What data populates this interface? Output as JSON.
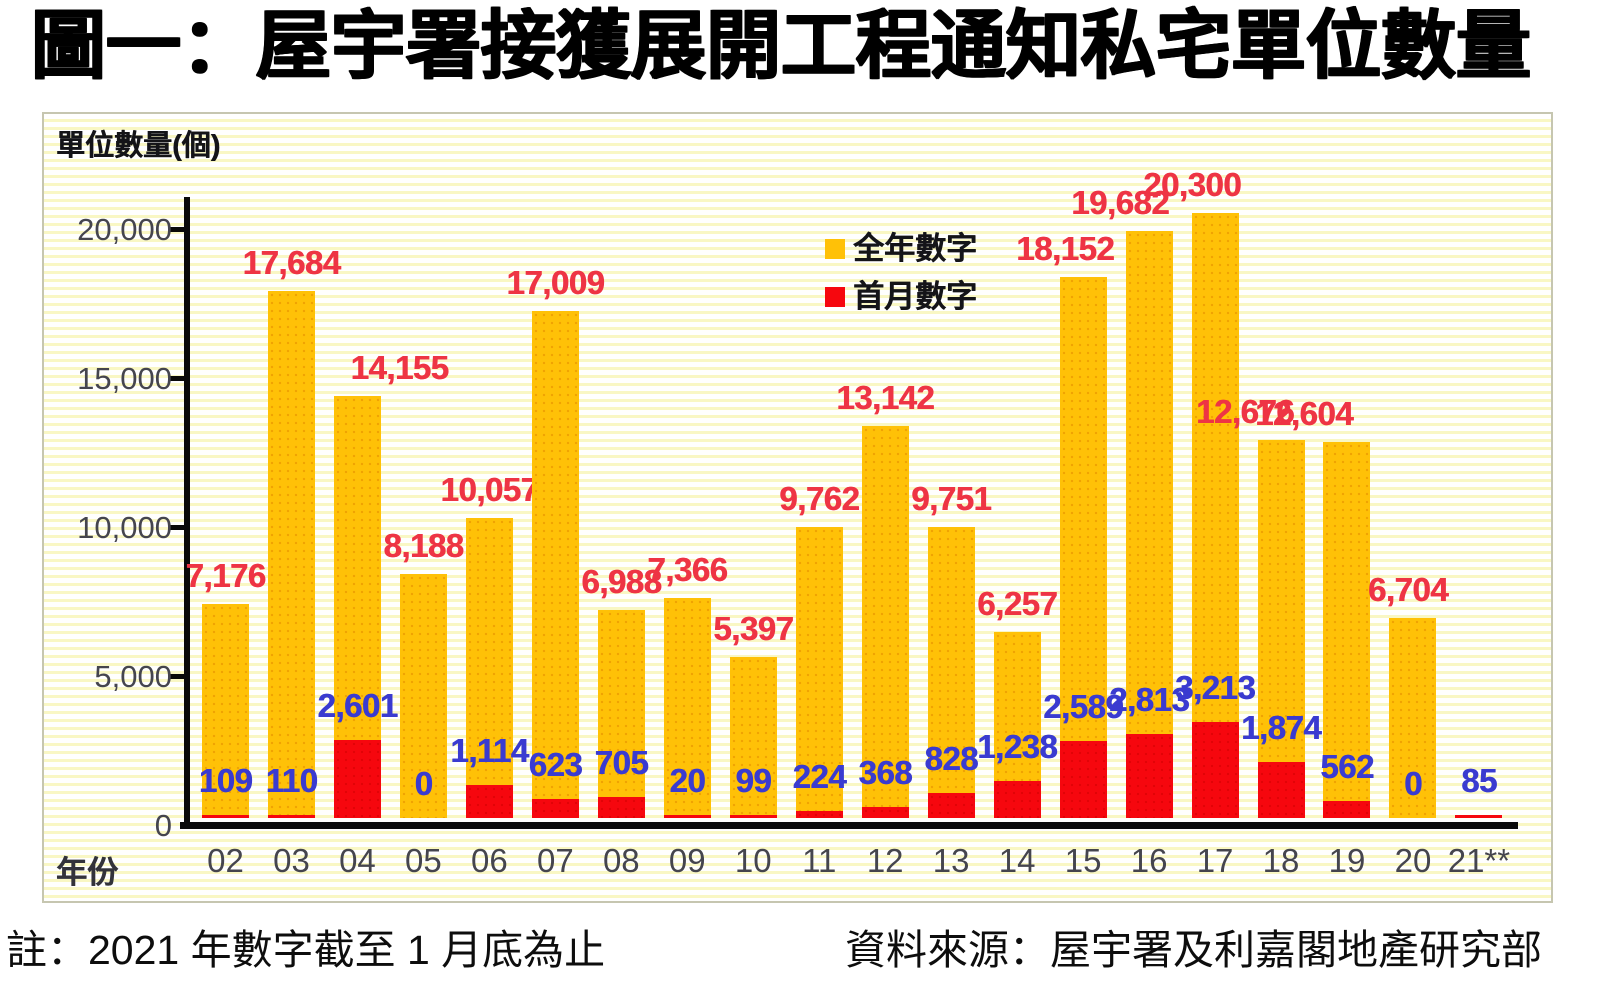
{
  "title": "圖一：屋宇署接獲展開工程通知私宅單位數量",
  "chart": {
    "unit_label": "單位數量(個)",
    "x_axis_label": "年份"
  },
  "chart_data": {
    "type": "bar",
    "title": "圖一：屋宇署接獲展開工程通知私宅單位數量",
    "categories": [
      "02",
      "03",
      "04",
      "05",
      "06",
      "07",
      "08",
      "09",
      "10",
      "11",
      "12",
      "13",
      "14",
      "15",
      "16",
      "17",
      "18",
      "19",
      "20",
      "21**"
    ],
    "series": [
      {
        "name": "全年數字",
        "color": "#ffc107",
        "values": [
          7176,
          17684,
          14155,
          8188,
          10057,
          17009,
          6988,
          7366,
          5397,
          9762,
          13142,
          9751,
          6257,
          18152,
          19682,
          20300,
          12676,
          12604,
          6704,
          null
        ]
      },
      {
        "name": "首月數字",
        "color": "#f6070e",
        "values": [
          109,
          110,
          2601,
          0,
          1114,
          623,
          705,
          20,
          99,
          224,
          368,
          828,
          1238,
          2589,
          2813,
          3213,
          1874,
          562,
          0,
          85
        ]
      }
    ],
    "xlabel": "年份",
    "ylabel": "單位數量(個)",
    "ylim": [
      0,
      20000
    ],
    "yticks": [
      0,
      5000,
      10000,
      15000,
      20000
    ],
    "ytick_labels": [
      "0",
      "5,000",
      "10,000",
      "15,000",
      "20,000"
    ],
    "grid": false,
    "legend_position": "top-inside"
  },
  "colors": {
    "full_year_bar": "#ffc107",
    "first_month_bar": "#f6070e",
    "full_year_value_label": "#ee3444",
    "first_month_value_label": "#3a3bd0"
  },
  "footer": {
    "note": "註：2021 年數字截至 1 月底為止",
    "source": "資料來源：屋宇署及利嘉閣地產研究部"
  }
}
